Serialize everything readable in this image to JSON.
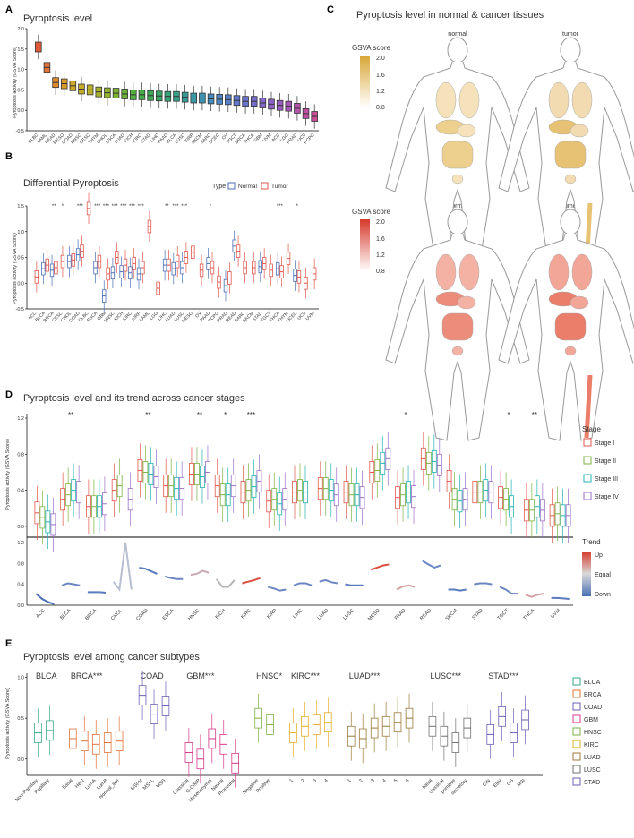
{
  "panel_letters": {
    "a": "A",
    "b": "B",
    "c": "C",
    "d": "D",
    "e": "E"
  },
  "chart_data": [
    {
      "id": "A",
      "type": "boxplot",
      "title": "Pyroptosis level",
      "ylabel": "Pyroptosis activity (GSVA Score)",
      "ylim": [
        -0.5,
        2.0
      ],
      "yticks": [
        -0.5,
        0.0,
        0.5,
        1.0,
        1.5,
        2.0
      ],
      "categories": [
        "DLBC",
        "LAML",
        "READ",
        "MESO",
        "COAD",
        "HNSC",
        "CESC",
        "THYM",
        "CHOL",
        "ESCA",
        "LUAD",
        "KICH",
        "KIRC",
        "STAD",
        "LIHC",
        "PAAD",
        "BLCA",
        "LUSC",
        "KIRP",
        "SKCM",
        "SARC",
        "UCEC",
        "OV",
        "TGCT",
        "BRCA",
        "THCA",
        "GBM",
        "UVM",
        "ACC",
        "LGG",
        "PRAD",
        "UCS",
        "PCPG"
      ],
      "medians": [
        1.55,
        1.05,
        0.68,
        0.65,
        0.6,
        0.52,
        0.5,
        0.45,
        0.43,
        0.42,
        0.4,
        0.38,
        0.38,
        0.36,
        0.35,
        0.34,
        0.34,
        0.32,
        0.3,
        0.3,
        0.28,
        0.27,
        0.26,
        0.24,
        0.22,
        0.22,
        0.18,
        0.15,
        0.12,
        0.1,
        0.05,
        -0.08,
        -0.15
      ],
      "colors": [
        "#e05a3a",
        "#e0733a",
        "#df8a2c",
        "#d99b2a",
        "#cfa72a",
        "#c5ad2a",
        "#b8b02b",
        "#a6b12d",
        "#92b22f",
        "#7db232",
        "#68b136",
        "#53af3e",
        "#45ab4a",
        "#3ea858",
        "#3aa568",
        "#38a278",
        "#379f88",
        "#389b97",
        "#3b97a4",
        "#3f92b0",
        "#458cba",
        "#4d86c2",
        "#5680c7",
        "#607acb",
        "#6b74cd",
        "#766ecd",
        "#8168cb",
        "#8c62c7",
        "#9a5dc0",
        "#a858b7",
        "#b554ad",
        "#c051a2",
        "#cb4f96"
      ]
    },
    {
      "id": "B",
      "type": "boxplot-grouped",
      "title": "Differential Pyroptosis",
      "ylabel": "Pyroptosis activity (GSVA Score)",
      "ylim": [
        -0.5,
        1.5
      ],
      "yticks": [
        -0.5,
        0.0,
        0.5,
        1.0,
        1.5
      ],
      "legend": {
        "title": "Type",
        "items": [
          "Normal",
          "Tumor"
        ],
        "colors": [
          "#4a6fb5",
          "#e2574c"
        ],
        "position": "top-right"
      },
      "categories": [
        "ACC",
        "BLCA",
        "BRCA",
        "CESC",
        "CHOL",
        "COAD",
        "DLBC",
        "ESCA",
        "GBM",
        "HNSC",
        "KICH",
        "KIRC",
        "KIRP",
        "LAML",
        "LGG",
        "LIHC",
        "LUAD",
        "LUSC",
        "MESO",
        "OV",
        "PAAD",
        "PCPG",
        "PRAD",
        "READ",
        "SARC",
        "SKCM",
        "STAD",
        "TGCT",
        "THCA",
        "THYM",
        "UCEC",
        "UCS",
        "UVM"
      ],
      "significance": [
        "",
        "",
        "**",
        "*",
        "",
        "***",
        "",
        "***",
        "***",
        "***",
        "***",
        "***",
        "***",
        "",
        "",
        "**",
        "***",
        "***",
        "",
        "",
        "*",
        "",
        "",
        "",
        "",
        "",
        "",
        "",
        "***",
        "",
        "*",
        "",
        ""
      ],
      "normal_medians": [
        null,
        0.28,
        0.25,
        null,
        0.42,
        0.55,
        null,
        0.3,
        -0.25,
        0.2,
        0.22,
        0.2,
        0.18,
        null,
        null,
        0.35,
        0.28,
        0.3,
        null,
        null,
        0.38,
        null,
        -0.05,
        0.72,
        null,
        null,
        0.32,
        null,
        0.28,
        null,
        0.15,
        null,
        null
      ],
      "tumor_medians": [
        0.12,
        0.35,
        0.3,
        0.42,
        0.45,
        0.62,
        1.45,
        0.42,
        0.18,
        0.5,
        0.35,
        0.38,
        0.3,
        1.1,
        -0.1,
        0.35,
        0.42,
        0.5,
        0.6,
        0.25,
        0.3,
        0.02,
        0.1,
        0.62,
        0.3,
        0.3,
        0.38,
        0.25,
        0.22,
        0.48,
        0.12,
        0.0,
        0.18
      ]
    },
    {
      "id": "C",
      "type": "anatomy-heatmap",
      "title": "Pyroptosis level in normal & cancer tissues",
      "legend_title": "GSVA score",
      "scale_ticks": [
        "2.0",
        "1.6",
        "1.2",
        "0.8"
      ],
      "sub_labels": [
        "normal",
        "tumor"
      ],
      "top_color": "#d8a634",
      "bottom_color": "#d63a2c"
    },
    {
      "id": "D",
      "type": "boxplot-grouped+trend",
      "title": "Pyroptosis level and its trend across cancer stages",
      "ylabel": "Pyroptosis activity (GSVA Score)",
      "ylim": [
        -0.1,
        1.25
      ],
      "yticks": [
        0.0,
        0.4,
        0.8,
        1.2
      ],
      "categories": [
        "ACC",
        "BLCA",
        "BRCA",
        "CHOL",
        "COAD",
        "ESCA",
        "HNSC",
        "KICH",
        "KIRC",
        "KIRP",
        "LIHC",
        "LUAD",
        "LUSC",
        "MESO",
        "PAAD",
        "READ",
        "SKCM",
        "STAD",
        "TGCT",
        "THCA",
        "UVM"
      ],
      "significance": [
        "",
        "**",
        "",
        "",
        "**",
        "",
        "**",
        "*",
        "***",
        "",
        "",
        "",
        "",
        "",
        "*",
        "",
        "",
        "",
        "*",
        "**",
        ""
      ],
      "stage_legend": {
        "title": "Stage",
        "items": [
          "Stage I",
          "Stage II",
          "Stage III",
          "Stage IV"
        ],
        "colors": [
          "#e2574c",
          "#7cb342",
          "#26b3b3",
          "#9b6fc9"
        ]
      },
      "stage_medians": [
        [
          0.15,
          0.1,
          0.05,
          0.02
        ],
        [
          0.3,
          0.35,
          0.4,
          0.38
        ],
        [
          0.22,
          0.22,
          0.22,
          0.25
        ],
        [
          0.4,
          0.45,
          null,
          0.3
        ],
        [
          0.62,
          0.6,
          0.58,
          0.55
        ],
        [
          0.45,
          0.45,
          0.42,
          0.42
        ],
        [
          0.58,
          0.58,
          0.55,
          0.6
        ],
        [
          0.45,
          0.35,
          0.35,
          0.45
        ],
        [
          0.38,
          0.4,
          0.44,
          0.5
        ],
        [
          0.28,
          0.3,
          0.25,
          0.3
        ],
        [
          0.38,
          0.4,
          0.38,
          null
        ],
        [
          0.42,
          0.42,
          0.4,
          0.35
        ],
        [
          0.38,
          0.35,
          0.35,
          0.32
        ],
        [
          0.6,
          0.62,
          0.7,
          0.75
        ],
        [
          0.32,
          0.35,
          0.38,
          0.33
        ],
        [
          0.75,
          0.7,
          0.72,
          0.68
        ],
        [
          0.5,
          0.3,
          0.28,
          0.3
        ],
        [
          0.38,
          0.38,
          0.4,
          0.38
        ],
        [
          0.32,
          0.3,
          0.22,
          null
        ],
        [
          0.18,
          0.18,
          0.22,
          0.18
        ],
        [
          0.12,
          0.14,
          0.12,
          0.12
        ]
      ],
      "trend_yticks": [
        0.0,
        0.4,
        0.8,
        1.2
      ],
      "trend_legend": {
        "title": "Trend",
        "labels": [
          "Up",
          "Equal",
          "Down"
        ]
      },
      "trend_lines": [
        {
          "points": [
            0.22,
            0.12,
            0.06,
            0.02
          ],
          "color": "#4a6fb5"
        },
        {
          "points": [
            0.38,
            0.42,
            0.4,
            0.38
          ],
          "color": "#6b86c2"
        },
        {
          "points": [
            0.25,
            0.25,
            0.25,
            0.24
          ],
          "color": "#5a7bbd"
        },
        {
          "points": [
            0.45,
            0.3,
            1.2,
            0.3
          ],
          "color": "#b8bfd0"
        },
        {
          "points": [
            0.72,
            0.7,
            0.65,
            0.6
          ],
          "color": "#5a7bbd"
        },
        {
          "points": [
            0.55,
            0.52,
            0.5,
            0.5
          ],
          "color": "#6b86c2"
        },
        {
          "points": [
            0.58,
            0.6,
            0.66,
            0.62
          ],
          "color": "#c8a8b3"
        },
        {
          "points": [
            0.5,
            0.35,
            0.35,
            0.48
          ],
          "color": "#b5b5b5"
        },
        {
          "points": [
            0.42,
            0.45,
            0.48,
            0.52
          ],
          "color": "#d94d3c"
        },
        {
          "points": [
            0.35,
            0.32,
            0.28,
            0.3
          ],
          "color": "#6b86c2"
        },
        {
          "points": [
            0.38,
            0.42,
            0.42,
            0.38
          ],
          "color": "#6b86c2"
        },
        {
          "points": [
            0.45,
            0.48,
            0.44,
            0.42
          ],
          "color": "#6b86c2"
        },
        {
          "points": [
            0.4,
            0.38,
            0.38,
            0.38
          ],
          "color": "#5a7bbd"
        },
        {
          "points": [
            0.68,
            0.72,
            0.76,
            0.78
          ],
          "color": "#d94d3c"
        },
        {
          "points": [
            0.3,
            0.36,
            0.38,
            0.35
          ],
          "color": "#d5a0a0"
        },
        {
          "points": [
            0.85,
            0.78,
            0.72,
            0.76
          ],
          "color": "#6b86c2"
        },
        {
          "points": [
            0.3,
            0.3,
            0.28,
            0.3
          ],
          "color": "#5a7bbd"
        },
        {
          "points": [
            0.4,
            0.42,
            0.42,
            0.4
          ],
          "color": "#6b86c2"
        },
        {
          "points": [
            0.35,
            0.3,
            0.22,
            0.22
          ],
          "color": "#6b86c2"
        },
        {
          "points": [
            0.2,
            0.16,
            0.2,
            0.22
          ],
          "color": "#d5a0a0"
        },
        {
          "points": [
            0.14,
            0.14,
            0.13,
            0.12
          ],
          "color": "#5a7bbd"
        }
      ]
    },
    {
      "id": "E",
      "type": "boxplot-subtypes",
      "title": "Pyroptosis level among cancer subtypes",
      "ylabel": "Pyroptosis activity (GSVA Score)",
      "ylim": [
        -0.2,
        1.05
      ],
      "yticks": [
        0.0,
        0.5,
        1.0
      ],
      "groups": [
        {
          "name": "BLCA",
          "stars": "",
          "color": "#3aaa8a",
          "subtypes": [
            "Non-Papillary",
            "Papillary"
          ],
          "medians": [
            0.32,
            0.35
          ]
        },
        {
          "name": "BRCA",
          "stars": "***",
          "color": "#e0733a",
          "subtypes": [
            "Basal",
            "Her2",
            "LumA",
            "LumB",
            "Normal_like"
          ],
          "medians": [
            0.25,
            0.22,
            0.18,
            0.2,
            0.22
          ]
        },
        {
          "name": "COAD",
          "stars": "",
          "color": "#6d5fb5",
          "subtypes": [
            "MSI-H",
            "MSI-L",
            "MSS"
          ],
          "medians": [
            0.78,
            0.55,
            0.65
          ]
        },
        {
          "name": "GBM",
          "stars": "***",
          "color": "#d6388a",
          "subtypes": [
            "Classical",
            "G-CIMP",
            "Mesenchymal",
            "Neural",
            "Proneural"
          ],
          "medians": [
            0.08,
            0.0,
            0.25,
            0.18,
            -0.05
          ]
        },
        {
          "name": "HNSC",
          "stars": "*",
          "color": "#7bb241",
          "subtypes": [
            "Negative",
            "Positive"
          ],
          "medians": [
            0.5,
            0.42
          ]
        },
        {
          "name": "KIRC",
          "stars": "***",
          "color": "#e6ae2a",
          "subtypes": [
            "1",
            "2",
            "3",
            "4"
          ],
          "medians": [
            0.32,
            0.4,
            0.42,
            0.45
          ]
        },
        {
          "name": "LUAD",
          "stars": "***",
          "color": "#9c7a3a",
          "subtypes": [
            "1",
            "2",
            "3",
            "4",
            "5",
            "6"
          ],
          "medians": [
            0.28,
            0.25,
            0.38,
            0.4,
            0.45,
            0.5
          ]
        },
        {
          "name": "LUSC",
          "stars": "***",
          "color": "#707070",
          "subtypes": [
            "basal",
            "classical",
            "primitive",
            "secretory"
          ],
          "medians": [
            0.4,
            0.28,
            0.2,
            0.38
          ]
        },
        {
          "name": "STAD",
          "stars": "***",
          "color": "#6d5fb5",
          "subtypes": [
            "CIN",
            "EBV",
            "GS",
            "MSI"
          ],
          "medians": [
            0.3,
            0.52,
            0.32,
            0.48
          ]
        }
      ],
      "legend": [
        "BLCA",
        "BRCA",
        "COAD",
        "GBM",
        "HNSC",
        "KIRC",
        "LUAD",
        "LUSC",
        "STAD"
      ],
      "legend_colors": [
        "#3aaa8a",
        "#e0733a",
        "#6d5fb5",
        "#d6388a",
        "#7bb241",
        "#e6ae2a",
        "#9c7a3a",
        "#707070",
        "#6d5fb5"
      ]
    }
  ]
}
